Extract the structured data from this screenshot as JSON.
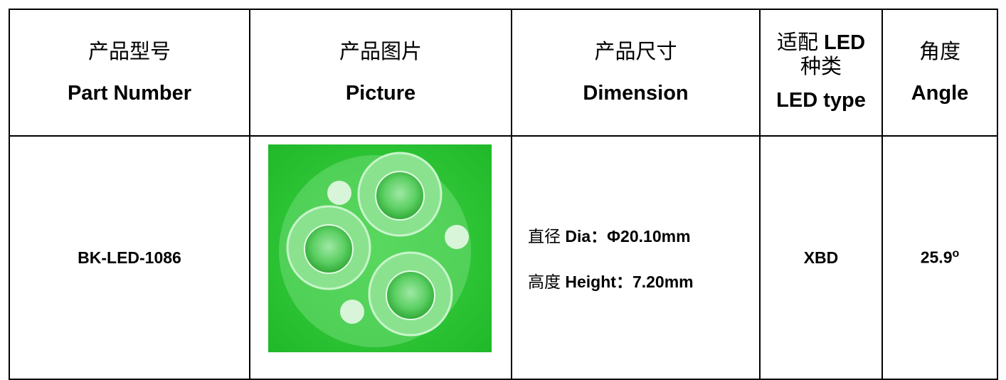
{
  "table": {
    "header": [
      {
        "zh": "产品型号",
        "en": "Part Number"
      },
      {
        "zh": "产品图片",
        "en": "Picture"
      },
      {
        "zh": "产品尺寸",
        "en": "Dimension"
      },
      {
        "zh": "适配",
        "led": "LED",
        "zh2": "种类",
        "en": "LED type"
      },
      {
        "zh": "角度",
        "en": "Angle"
      }
    ],
    "row": {
      "part_number": "BK-LED-1086",
      "dimension": [
        {
          "zh": "直径",
          "en": "Dia：Φ20.10mm"
        },
        {
          "zh": "高度",
          "en": "Height：7.20mm"
        }
      ],
      "led_type": "XBD",
      "angle": {
        "value": "25.9",
        "sup": "o"
      }
    }
  }
}
